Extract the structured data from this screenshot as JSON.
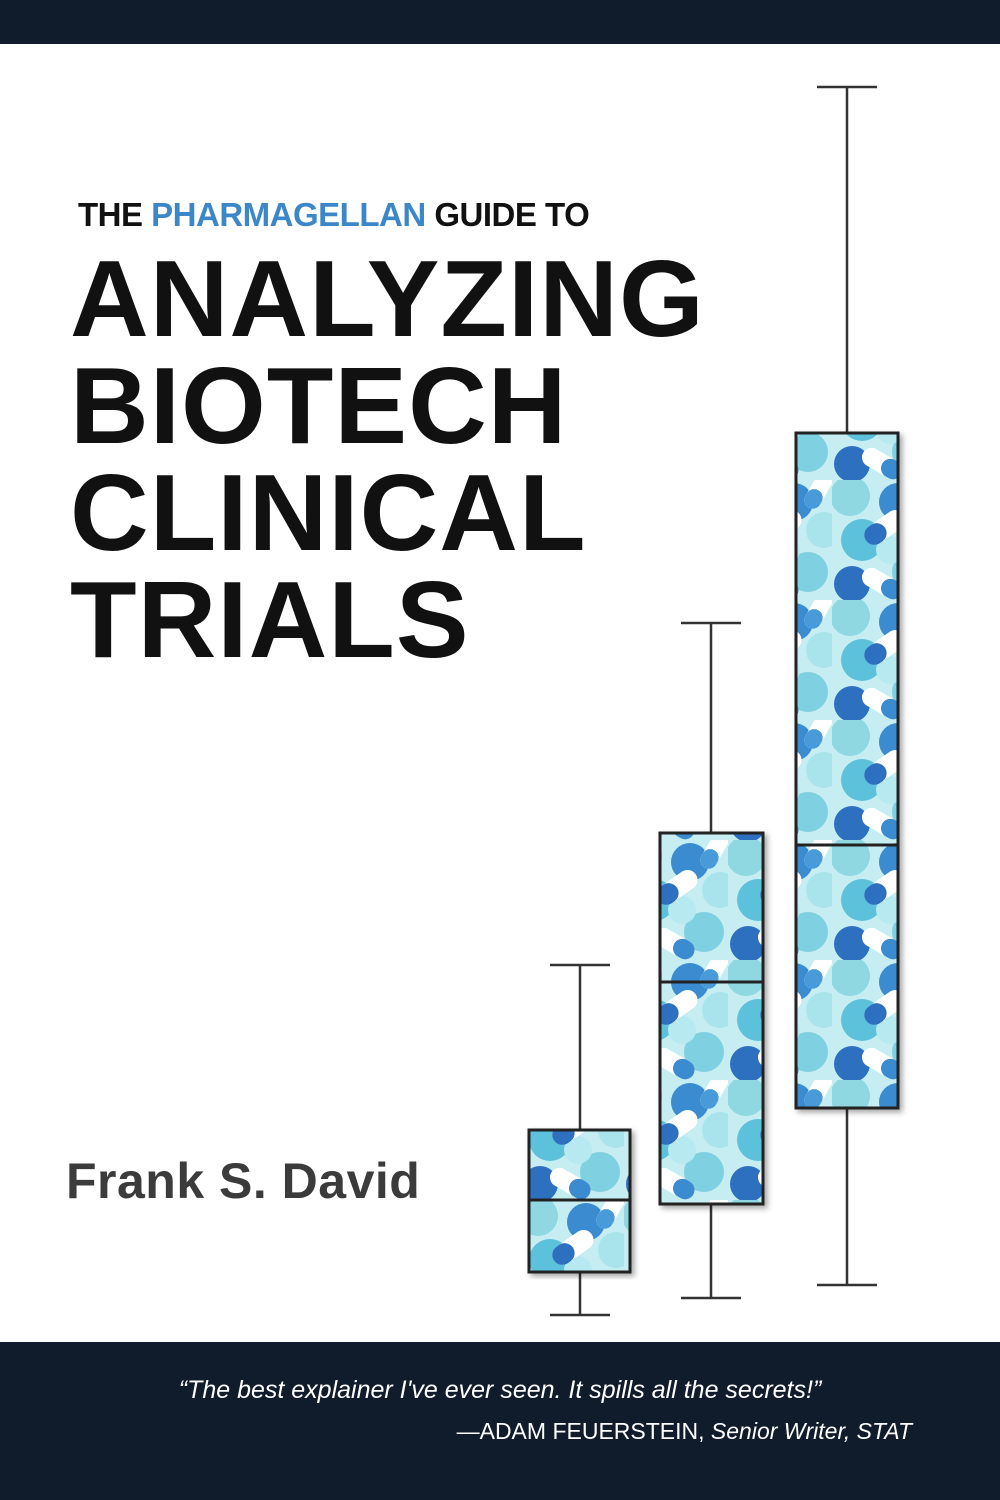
{
  "cover": {
    "series_prefix": "THE ",
    "series_brand": "PHARMAGELLAN",
    "series_suffix": " GUIDE TO",
    "title_lines": [
      "ANALYZING",
      "BIOTECH",
      "CLINICAL",
      "TRIALS"
    ],
    "author": "Frank S. David",
    "quote": "“The best explainer I've ever seen. It spills all the secrets!”",
    "attribution_name": "—ADAM FEUERSTEIN,",
    "attribution_role": " Senior Writer, STAT"
  },
  "colors": {
    "band": "#101b2b",
    "brand_blue": "#3c87c8",
    "pill_dark": "#2f6fc0",
    "pill_light": "#8fd8e2"
  },
  "illustration": {
    "type": "box-plot",
    "fill": "pills-capsules-icon"
  }
}
